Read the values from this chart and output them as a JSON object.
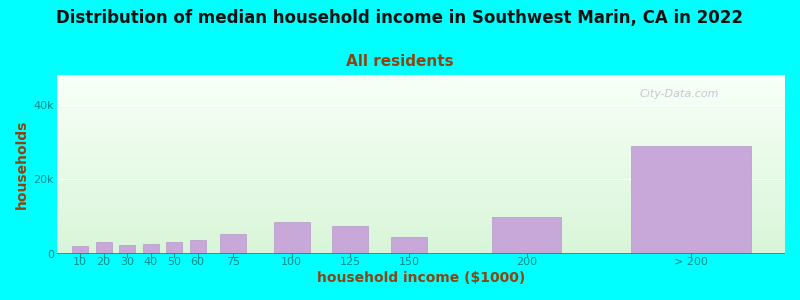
{
  "title": "Distribution of median household income in Southwest Marin, CA in 2022",
  "subtitle": "All residents",
  "xlabel": "household income ($1000)",
  "ylabel": "households",
  "background_color": "#00FFFF",
  "plot_bg_top_color": "#f8fff8",
  "plot_bg_bottom_color": "#d8f5d8",
  "bar_color": "#c8a8d8",
  "bar_edge_color": "#b898c8",
  "categories": [
    "10",
    "20",
    "30",
    "40",
    "50",
    "60",
    "75",
    "100",
    "125",
    "150",
    "200",
    "> 200"
  ],
  "x_positions": [
    10,
    20,
    30,
    40,
    50,
    60,
    75,
    100,
    125,
    150,
    200,
    270
  ],
  "bar_widths": [
    8,
    8,
    8,
    8,
    8,
    8,
    13,
    18,
    18,
    18,
    35,
    60
  ],
  "values": [
    2200,
    3200,
    2400,
    2800,
    3200,
    3800,
    5500,
    8500,
    7500,
    4500,
    10000,
    29000
  ],
  "ylim": [
    0,
    48000
  ],
  "yticks": [
    0,
    20000,
    40000
  ],
  "ytick_labels": [
    "0",
    "20k",
    "40k"
  ],
  "xtick_positions": [
    10,
    20,
    30,
    40,
    50,
    60,
    75,
    100,
    125,
    150,
    200,
    270
  ],
  "xtick_labels": [
    "10",
    "20",
    "30",
    "40",
    "50",
    "60",
    "75",
    "100",
    "125",
    "150",
    "200",
    "> 200"
  ],
  "title_color": "#111111",
  "subtitle_color": "#8B4513",
  "grid_color": "#d0d0d0",
  "tick_color": "#008B8B",
  "label_color": "#8B4513",
  "watermark": "City-Data.com",
  "title_fontsize": 12,
  "subtitle_fontsize": 11,
  "label_fontsize": 10,
  "tick_fontsize": 8
}
